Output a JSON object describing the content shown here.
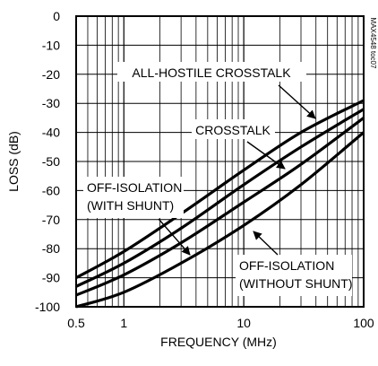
{
  "side_code": "MAX4548 toc07",
  "chart_data": {
    "type": "line",
    "xlabel": "FREQUENCY (MHz)",
    "ylabel": "LOSS (dB)",
    "x_scale": "log",
    "xlim": [
      0.5,
      100
    ],
    "ylim": [
      -100,
      0
    ],
    "grid": true,
    "x_ticks": [
      0.5,
      1,
      10,
      100
    ],
    "x_tick_labels": [
      "0.5",
      "1",
      "10",
      "100"
    ],
    "y_ticks": [
      0,
      -10,
      -20,
      -30,
      -40,
      -50,
      -60,
      -70,
      -80,
      -90,
      -100
    ],
    "y_tick_labels": [
      "0",
      "-10",
      "-20",
      "-30",
      "-40",
      "-50",
      "-60",
      "-70",
      "-80",
      "-90",
      "-100"
    ],
    "series": [
      {
        "name": "ALL-HOSTILE CROSSTALK",
        "x": [
          0.4,
          1,
          3,
          10,
          30,
          100
        ],
        "y": [
          -90,
          -81,
          -68,
          -53,
          -40,
          -29
        ]
      },
      {
        "name": "CROSSTALK",
        "x": [
          0.4,
          1,
          3,
          10,
          30,
          100
        ],
        "y": [
          -93,
          -85,
          -73,
          -58,
          -45,
          -32
        ]
      },
      {
        "name": "OFF-ISOLATION (WITH SHUNT)",
        "x": [
          0.4,
          1,
          3,
          10,
          30,
          100
        ],
        "y": [
          -96,
          -89,
          -78,
          -64,
          -51,
          -35
        ]
      },
      {
        "name": "OFF-ISOLATION (WITHOUT SHUNT)",
        "x": [
          0.4,
          1,
          3,
          10,
          30,
          100
        ],
        "y": [
          -100,
          -95,
          -85,
          -72,
          -58,
          -40
        ]
      }
    ],
    "annotations": [
      {
        "lines": [
          "ALL-HOSTILE CROSSTALK"
        ],
        "series": 0
      },
      {
        "lines": [
          "CROSSTALK"
        ],
        "series": 1
      },
      {
        "lines": [
          "OFF-ISOLATION",
          "(WITH SHUNT)"
        ],
        "series": 2
      },
      {
        "lines": [
          "OFF-ISOLATION",
          "(WITHOUT SHUNT)"
        ],
        "series": 3
      }
    ]
  }
}
